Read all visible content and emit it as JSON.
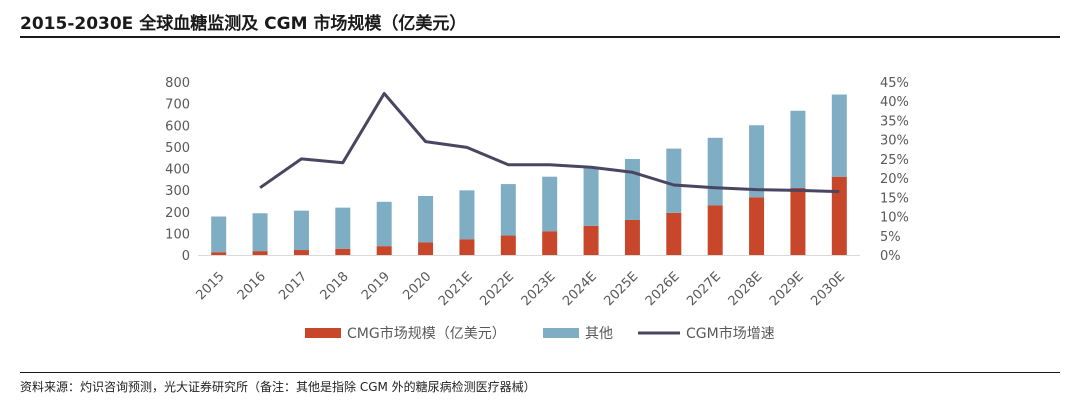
{
  "title": "2015-2030E 全球血糖监测及 CGM 市场规模（亿美元）",
  "source": "资料来源：灼识咨询预测，光大证券研究所（备注：其他是指除 CGM 外的糖尿病检测医疗器械）",
  "chart_data": {
    "type": "bar",
    "stacked": true,
    "categories": [
      "2015",
      "2016",
      "2017",
      "2018",
      "2019",
      "2020",
      "2021E",
      "2022E",
      "2023E",
      "2024E",
      "2025E",
      "2026E",
      "2027E",
      "2028E",
      "2029E",
      "2030E"
    ],
    "series": [
      {
        "name": "CMG市场规模（亿美元）",
        "kind": "bar",
        "axis": "left",
        "color": "#c8472b",
        "values": [
          13,
          18,
          23,
          29,
          41,
          58,
          73,
          90,
          110,
          135,
          162,
          195,
          229,
          267,
          310,
          362
        ]
      },
      {
        "name": "其他",
        "kind": "bar",
        "axis": "left",
        "color": "#7fadc4",
        "values": [
          165,
          175,
          182,
          190,
          205,
          215,
          226,
          238,
          252,
          268,
          282,
          297,
          313,
          333,
          357,
          380
        ]
      },
      {
        "name": "CGM市场增速",
        "kind": "line",
        "axis": "right",
        "color": "#4a4560",
        "values": [
          null,
          17.5,
          25,
          24,
          42,
          29.5,
          28,
          23.5,
          23.5,
          22.8,
          21.5,
          18.2,
          17.5,
          17,
          16.8,
          16.5
        ]
      }
    ],
    "y_left": {
      "min": 0,
      "max": 800,
      "step": 100,
      "ticks": [
        "0",
        "100",
        "200",
        "300",
        "400",
        "500",
        "600",
        "700",
        "800"
      ]
    },
    "y_right": {
      "min": 0,
      "max": 45,
      "step": 5,
      "ticks": [
        "0%",
        "5%",
        "10%",
        "15%",
        "20%",
        "25%",
        "30%",
        "35%",
        "40%",
        "45%"
      ]
    },
    "legend_position": "bottom",
    "grid": false
  }
}
